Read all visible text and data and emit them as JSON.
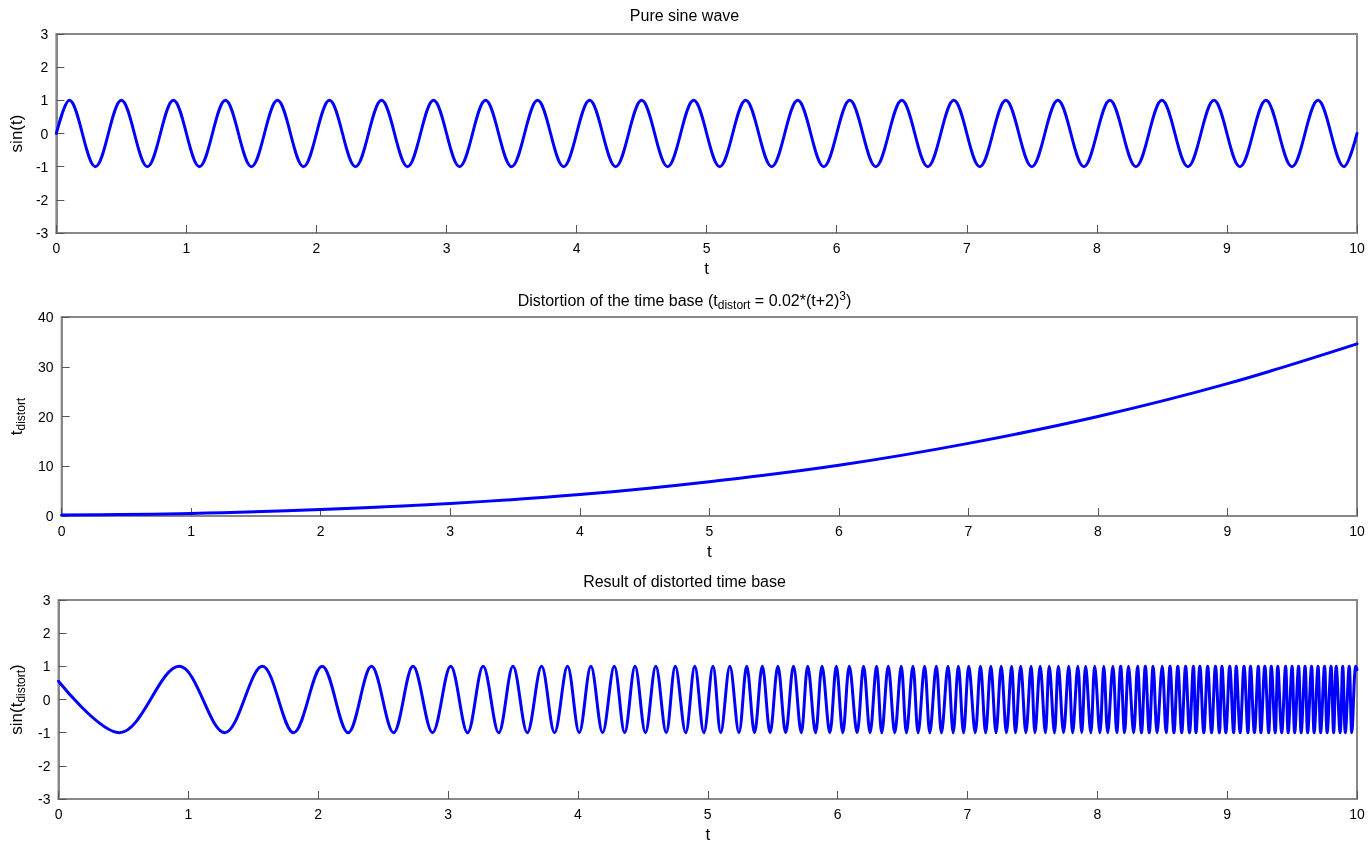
{
  "chart_data": [
    {
      "type": "line",
      "title": "Pure sine wave",
      "xlabel": "t",
      "ylabel": "sin(t)",
      "marker": "none",
      "line_style": "solid",
      "xlim": [
        0,
        10
      ],
      "xticks": [
        0,
        1,
        2,
        3,
        4,
        5,
        6,
        7,
        8,
        9,
        10
      ],
      "ylim": [
        -3,
        3
      ],
      "yticks": [
        -3,
        -2,
        -1,
        0,
        1,
        2,
        3
      ],
      "x": [
        0,
        0.1,
        0.3,
        0.5,
        0.7,
        0.9,
        1.1,
        1.3,
        1.5,
        1.7,
        1.9,
        2.1,
        2.3,
        2.5,
        2.7,
        2.9,
        3.1,
        3.3,
        3.5,
        3.7,
        3.9,
        4.1,
        4.3,
        4.5,
        4.7,
        4.9,
        5.1,
        5.3,
        5.5,
        5.7,
        5.9,
        6.1,
        6.3,
        6.5,
        6.7,
        6.9,
        7.1,
        7.3,
        7.5,
        7.7,
        7.9,
        8.1,
        8.3,
        8.5,
        8.7,
        8.9,
        9.1,
        9.3,
        9.5,
        9.7,
        9.9,
        10
      ],
      "series": [
        {
          "color": "#0000ff",
          "values": [
            0,
            1,
            -1,
            1,
            -1,
            1,
            -1,
            1,
            -1,
            1,
            -1,
            1,
            -1,
            1,
            -1,
            1,
            -1,
            1,
            -1,
            1,
            -1,
            1,
            -1,
            1,
            -1,
            1,
            -1,
            1,
            -1,
            1,
            -1,
            1,
            -1,
            1,
            -1,
            1,
            -1,
            1,
            -1,
            1,
            -1,
            1,
            -1,
            1,
            -1,
            1,
            -1,
            1,
            -1,
            1,
            -1,
            0
          ]
        }
      ]
    },
    {
      "type": "line",
      "title": "Distortion of the time base (t$_{distort}$ = 0.02*(t+2)$^{3}$)",
      "xlabel": "t",
      "ylabel": "t$_{distort}$",
      "marker": "none",
      "line_style": "solid",
      "xlim": [
        0,
        10
      ],
      "xticks": [
        0,
        1,
        2,
        3,
        4,
        5,
        6,
        7,
        8,
        9,
        10
      ],
      "ylim": [
        0,
        40
      ],
      "yticks": [
        0,
        10,
        20,
        30,
        40
      ],
      "x": [
        0,
        1,
        2,
        3,
        4,
        5,
        6,
        7,
        8,
        9,
        10
      ],
      "series": [
        {
          "color": "#0000ff",
          "values": [
            0.2,
            0.5,
            1.3,
            2.5,
            4.3,
            6.9,
            10.2,
            14.6,
            20,
            26.6,
            34.6
          ]
        }
      ]
    },
    {
      "type": "line",
      "title": "Result of distorted time base",
      "xlabel": "t",
      "ylabel": "sin(t$_{distort}$)",
      "marker": "none",
      "line_style": "solid",
      "xlim": [
        0,
        10
      ],
      "xticks": [
        0,
        1,
        2,
        3,
        4,
        5,
        6,
        7,
        8,
        9,
        10
      ],
      "ylim": [
        -3,
        3
      ],
      "yticks": [
        -3,
        -2,
        -1,
        0,
        1,
        2,
        3
      ],
      "x": [
        0,
        0.47,
        0.93,
        1.28,
        1.57,
        1.81,
        2.03,
        2.23,
        2.41,
        2.58,
        2.73,
        2.88,
        3.02,
        3.15,
        3.27,
        3.39,
        3.5,
        3.61,
        3.72,
        3.82,
        3.92,
        4.01,
        4.1,
        4.19,
        4.28,
        4.36,
        4.44,
        4.52,
        4.6,
        4.68,
        4.75,
        4.83,
        4.9,
        4.97,
        5.04,
        5.1,
        5.17,
        5.24,
        5.3,
        5.36,
        5.42,
        5.48,
        5.54,
        5.6,
        5.66,
        5.72,
        5.77,
        5.83,
        5.88,
        5.94,
        5.99,
        6.04,
        6.09,
        6.15,
        6.2,
        6.25,
        6.3,
        6.34,
        6.39,
        6.44,
        6.49,
        6.53,
        6.58,
        6.62,
        6.67,
        6.71,
        6.76,
        6.8,
        6.85,
        6.89,
        6.93,
        6.97,
        7.01,
        7.06,
        7.1,
        7.14,
        7.18,
        7.22,
        7.26,
        7.3,
        7.34,
        7.37,
        7.41,
        7.45,
        7.49,
        7.52,
        7.56,
        7.6,
        7.63,
        7.67,
        7.7,
        7.74,
        7.78,
        7.81,
        7.85,
        7.88,
        7.91,
        7.95,
        7.98,
        8.02,
        8.05,
        8.08,
        8.12,
        8.15,
        8.18,
        8.21,
        8.24,
        8.28,
        8.31,
        8.34,
        8.37,
        8.4,
        8.43,
        8.46,
        8.5,
        8.53,
        8.56,
        8.59,
        8.62,
        8.65,
        8.68,
        8.71,
        8.74,
        8.76,
        8.79,
        8.82,
        8.85,
        8.88,
        8.91,
        8.94,
        8.96,
        8.99,
        9.02,
        9.05,
        9.07,
        9.1,
        9.13,
        9.16,
        9.18,
        9.21,
        9.24,
        9.26,
        9.29,
        9.32,
        9.34,
        9.37,
        9.39,
        9.42,
        9.45,
        9.47,
        9.5,
        9.52,
        9.55,
        9.57,
        9.6,
        9.62,
        9.65,
        9.67,
        9.7,
        9.72,
        9.75,
        9.77,
        9.8,
        9.82,
        9.84,
        9.87,
        9.89,
        9.91,
        9.94,
        9.96,
        9.99,
        10
      ],
      "series": [
        {
          "color": "#0000ff",
          "values": [
            0.55,
            -1,
            1,
            -1,
            1,
            -1,
            1,
            -1,
            1,
            -1,
            1,
            -1,
            1,
            -1,
            1,
            -1,
            1,
            -1,
            1,
            -1,
            1,
            -1,
            1,
            -1,
            1,
            -1,
            1,
            -1,
            1,
            -1,
            1,
            -1,
            1,
            -1,
            1,
            -1,
            1,
            -1,
            1,
            -1,
            1,
            -1,
            1,
            -1,
            1,
            -1,
            1,
            -1,
            1,
            -1,
            1,
            -1,
            1,
            -1,
            1,
            -1,
            1,
            -1,
            1,
            -1,
            1,
            -1,
            1,
            -1,
            1,
            -1,
            1,
            -1,
            1,
            -1,
            1,
            -1,
            1,
            -1,
            1,
            -1,
            1,
            -1,
            1,
            -1,
            1,
            -1,
            1,
            -1,
            1,
            -1,
            1,
            -1,
            1,
            -1,
            1,
            -1,
            1,
            -1,
            1,
            -1,
            1,
            -1,
            1,
            -1,
            1,
            -1,
            1,
            -1,
            1,
            -1,
            1,
            -1,
            1,
            -1,
            1,
            -1,
            1,
            -1,
            1,
            -1,
            1,
            -1,
            1,
            -1,
            1,
            -1,
            1,
            -1,
            1,
            -1,
            1,
            -1,
            1,
            -1,
            1,
            -1,
            1,
            -1,
            1,
            -1,
            1,
            -1,
            1,
            -1,
            1,
            -1,
            1,
            -1,
            1,
            -1,
            1,
            -1,
            1,
            -1,
            1,
            -1,
            1,
            -1,
            1,
            -1,
            1,
            -1,
            1,
            -1,
            1,
            -1,
            1,
            -1,
            1,
            -1,
            1,
            -1,
            1,
            -1,
            1,
            0.9
          ]
        }
      ]
    }
  ]
}
